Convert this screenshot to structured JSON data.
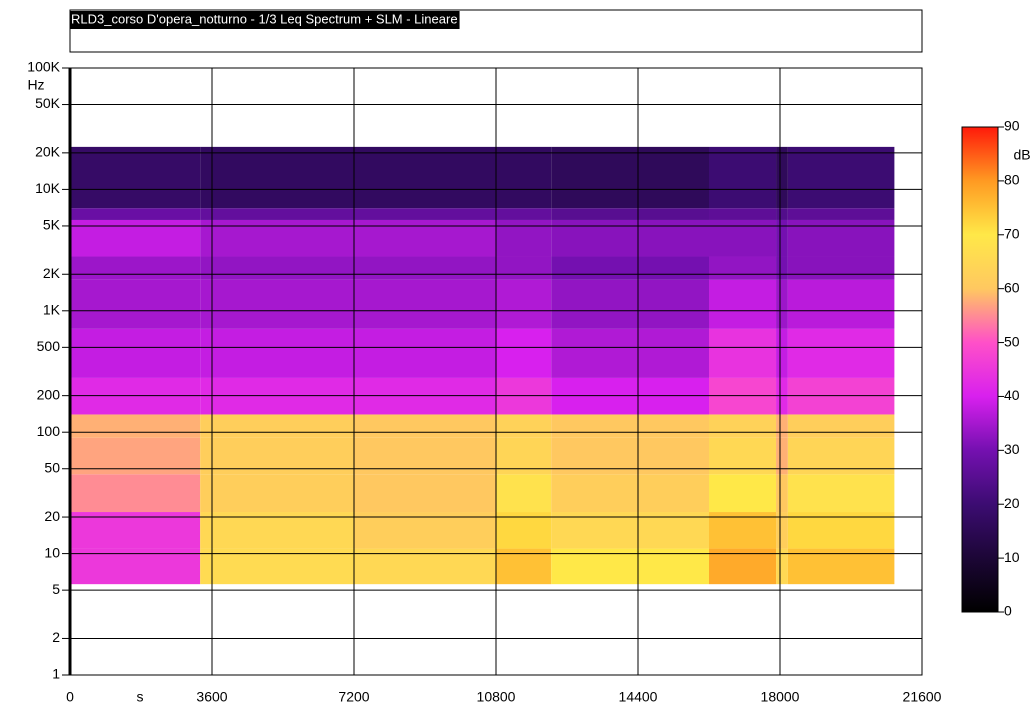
{
  "chart_data": {
    "type": "heatmap",
    "title": "RLD3_corso D'opera_notturno - 1/3 Leq Spectrum + SLM - Lineare",
    "x_label": "s",
    "y_label": "Hz",
    "colorbar_label": "dB",
    "xlim": [
      0,
      21600
    ],
    "xticks": [
      0,
      3600,
      7200,
      10800,
      14400,
      18000,
      21600
    ],
    "ylim": [
      1,
      100000
    ],
    "log_y": true,
    "yticks": [
      1,
      2,
      5,
      10,
      20,
      50,
      100,
      200,
      500,
      {
        "value": 1000,
        "label": "1K"
      },
      {
        "value": 2000,
        "label": "2K"
      },
      {
        "value": 5000,
        "label": "5K"
      },
      {
        "value": 10000,
        "label": "10K"
      },
      {
        "value": 20000,
        "label": "20K"
      },
      {
        "value": 50000,
        "label": "50K"
      },
      {
        "value": 100000,
        "label": "100K"
      }
    ],
    "grid": true,
    "zlim": [
      0,
      90
    ],
    "zticks": [
      0,
      10,
      20,
      30,
      40,
      50,
      60,
      70,
      80,
      90
    ],
    "colorscale": [
      "#000000",
      "#1c0636",
      "#3c0c72",
      "#7410b0",
      "#d820ee",
      "#ff50c8",
      "#ffc860",
      "#ffe848",
      "#ff9a22",
      "#ff1a0a"
    ],
    "xbins": [
      0,
      3300,
      7200,
      10800,
      12200,
      16200,
      17900,
      18200,
      20900
    ],
    "ybins": [
      5.6,
      11,
      22,
      45,
      90,
      140,
      280,
      710,
      1800,
      2800,
      5600,
      7000,
      22400
    ],
    "values": [
      [
        45,
        66,
        65,
        75,
        70,
        78,
        65,
        75
      ],
      [
        45,
        65,
        62,
        72,
        65,
        75,
        62,
        72
      ],
      [
        55,
        62,
        60,
        68,
        62,
        70,
        60,
        68
      ],
      [
        57,
        62,
        60,
        64,
        60,
        65,
        58,
        64
      ],
      [
        58,
        62,
        60,
        63,
        60,
        63,
        58,
        62
      ],
      [
        42,
        42,
        42,
        45,
        40,
        48,
        42,
        47
      ],
      [
        38,
        38,
        38,
        40,
        36,
        44,
        38,
        42
      ],
      [
        35,
        35,
        35,
        36,
        33,
        38,
        34,
        37
      ],
      [
        34,
        33,
        33,
        33,
        30,
        33,
        30,
        32
      ],
      [
        38,
        35,
        35,
        33,
        32,
        32,
        30,
        32
      ],
      [
        28,
        27,
        27,
        27,
        25,
        26,
        24,
        26
      ],
      [
        18,
        17,
        17,
        17,
        16,
        20,
        16,
        20
      ]
    ]
  }
}
